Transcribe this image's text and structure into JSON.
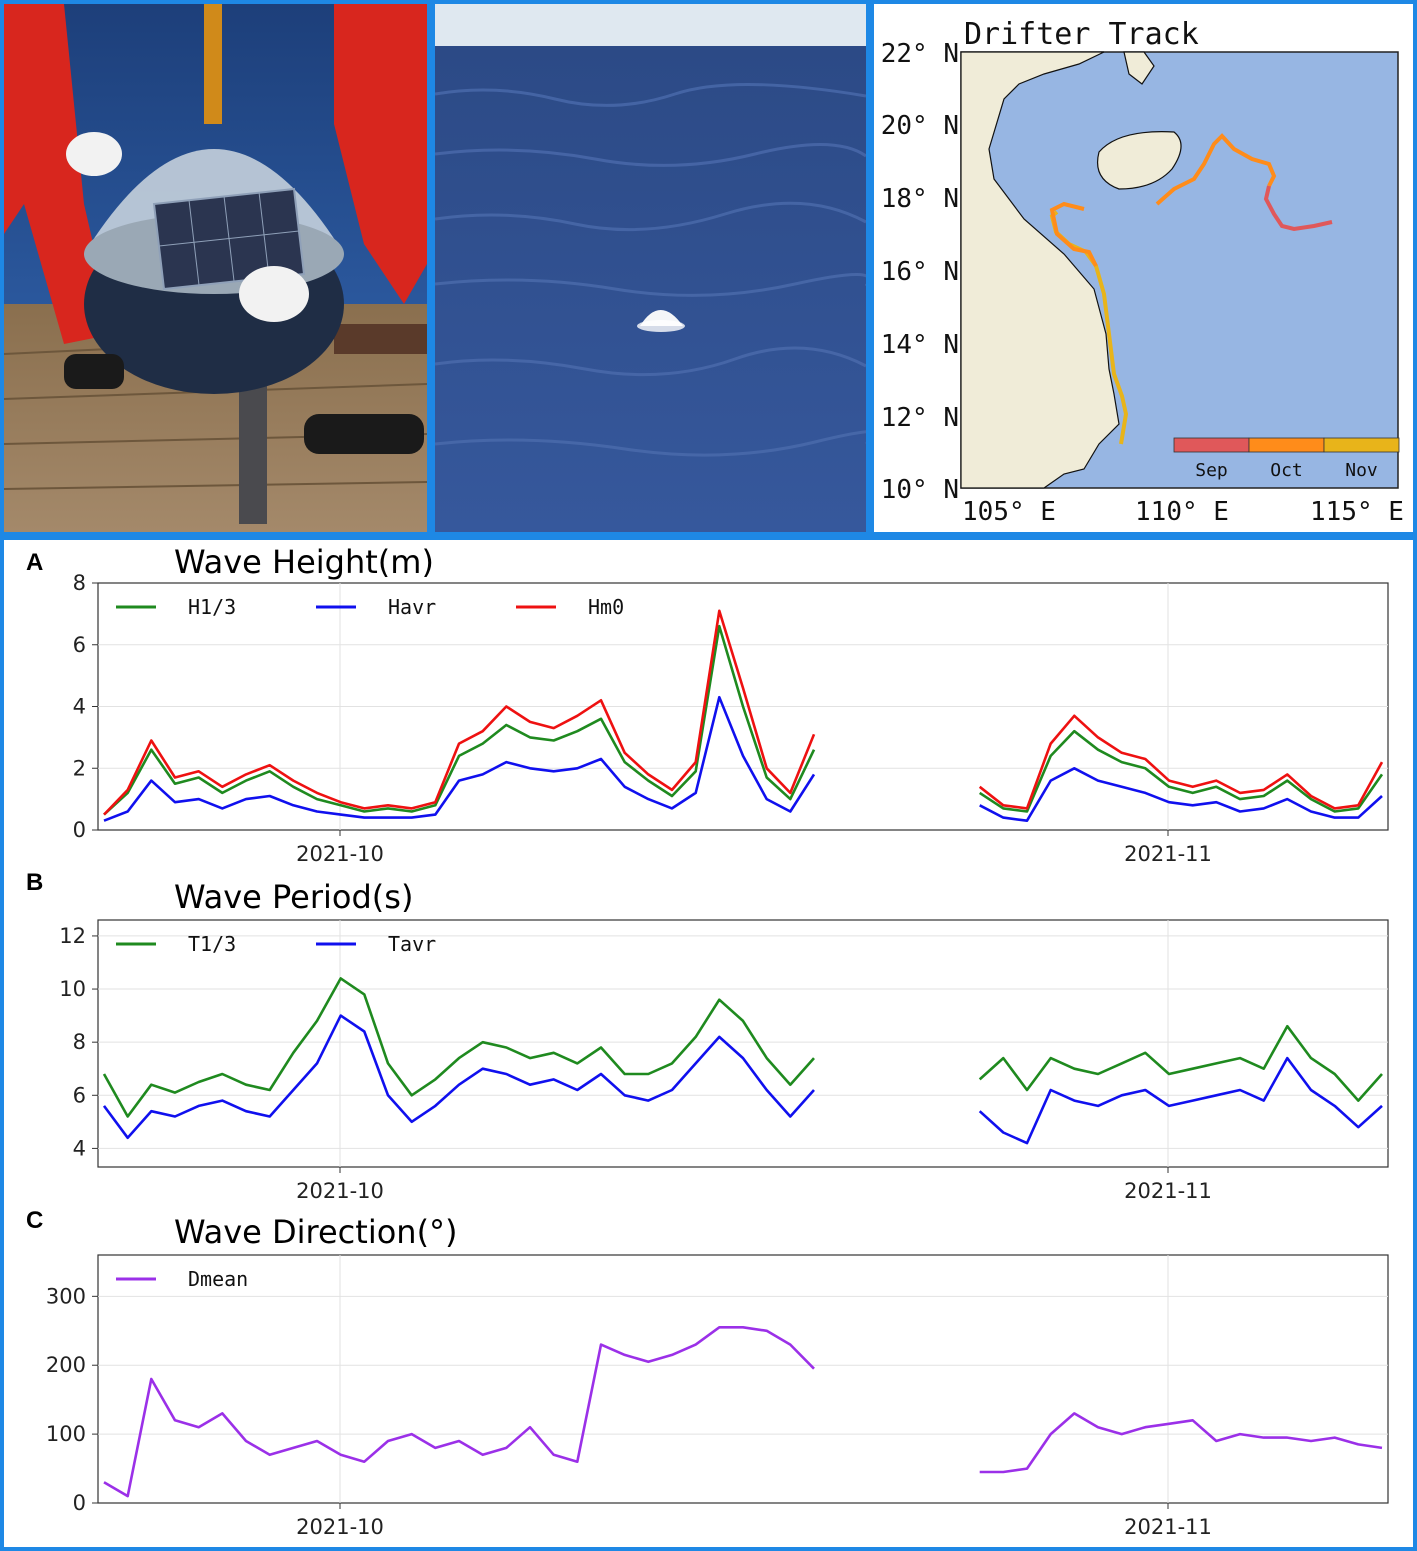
{
  "map": {
    "title": "Drifter Track",
    "lat_labels": [
      "22° N",
      "20° N",
      "18° N",
      "16° N",
      "14° N",
      "12° N",
      "10° N"
    ],
    "lon_labels": [
      "105° E",
      "110° E",
      "115° E"
    ],
    "colorbar": {
      "labels": [
        "Sep",
        "Oct",
        "Nov"
      ],
      "colors": [
        "#e0585a",
        "#ff8c1a",
        "#e8b41a"
      ]
    },
    "colors": {
      "land": "#f0ecd8",
      "sea": "#97b6e3"
    }
  },
  "chart_data": [
    {
      "panel": "A",
      "type": "line",
      "title": "Wave Height(m)",
      "ylim": [
        0,
        8
      ],
      "yticks": [
        0,
        2,
        4,
        6,
        8
      ],
      "xticklabels": [
        "2021-10",
        "2021-11"
      ],
      "grid": true,
      "legend": "top-left",
      "series": [
        {
          "name": "H1/3",
          "color": "#1f8a1f",
          "values": [
            0.5,
            1.2,
            2.6,
            1.5,
            1.7,
            1.2,
            1.6,
            1.9,
            1.4,
            1.0,
            0.8,
            0.6,
            0.7,
            0.6,
            0.8,
            2.4,
            2.8,
            3.4,
            3.0,
            2.9,
            3.2,
            3.6,
            2.2,
            1.6,
            1.1,
            1.9,
            6.6,
            4.0,
            1.7,
            1.0,
            2.6,
            null,
            null,
            null,
            null,
            null,
            null,
            1.2,
            0.7,
            0.6,
            2.4,
            3.2,
            2.6,
            2.2,
            2.0,
            1.4,
            1.2,
            1.4,
            1.0,
            1.1,
            1.6,
            1.0,
            0.6,
            0.7,
            1.8
          ]
        },
        {
          "name": "Havr",
          "color": "#1010ee",
          "values": [
            0.3,
            0.6,
            1.6,
            0.9,
            1.0,
            0.7,
            1.0,
            1.1,
            0.8,
            0.6,
            0.5,
            0.4,
            0.4,
            0.4,
            0.5,
            1.6,
            1.8,
            2.2,
            2.0,
            1.9,
            2.0,
            2.3,
            1.4,
            1.0,
            0.7,
            1.2,
            4.3,
            2.4,
            1.0,
            0.6,
            1.8,
            null,
            null,
            null,
            null,
            null,
            null,
            0.8,
            0.4,
            0.3,
            1.6,
            2.0,
            1.6,
            1.4,
            1.2,
            0.9,
            0.8,
            0.9,
            0.6,
            0.7,
            1.0,
            0.6,
            0.4,
            0.4,
            1.1
          ]
        },
        {
          "name": "Hm0",
          "color": "#ee1111",
          "values": [
            0.5,
            1.3,
            2.9,
            1.7,
            1.9,
            1.4,
            1.8,
            2.1,
            1.6,
            1.2,
            0.9,
            0.7,
            0.8,
            0.7,
            0.9,
            2.8,
            3.2,
            4.0,
            3.5,
            3.3,
            3.7,
            4.2,
            2.5,
            1.8,
            1.3,
            2.2,
            7.1,
            4.6,
            2.0,
            1.2,
            3.1,
            null,
            null,
            null,
            null,
            null,
            null,
            1.4,
            0.8,
            0.7,
            2.8,
            3.7,
            3.0,
            2.5,
            2.3,
            1.6,
            1.4,
            1.6,
            1.2,
            1.3,
            1.8,
            1.1,
            0.7,
            0.8,
            2.2
          ]
        }
      ]
    },
    {
      "panel": "B",
      "type": "line",
      "title": "Wave Period(s)",
      "ylim": [
        3.3,
        12.6
      ],
      "yticks": [
        4,
        6,
        8,
        10,
        12
      ],
      "xticklabels": [
        "2021-10",
        "2021-11"
      ],
      "grid": true,
      "legend": "top-left",
      "series": [
        {
          "name": "T1/3",
          "color": "#1f8a1f",
          "values": [
            6.8,
            5.2,
            6.4,
            6.1,
            6.5,
            6.8,
            6.4,
            6.2,
            7.6,
            8.8,
            10.4,
            9.8,
            7.2,
            6.0,
            6.6,
            7.4,
            8.0,
            7.8,
            7.4,
            7.6,
            7.2,
            7.8,
            6.8,
            6.8,
            7.2,
            8.2,
            9.6,
            8.8,
            7.4,
            6.4,
            7.4,
            null,
            null,
            null,
            null,
            null,
            null,
            6.6,
            7.4,
            6.2,
            7.4,
            7.0,
            6.8,
            7.2,
            7.6,
            6.8,
            7.0,
            7.2,
            7.4,
            7.0,
            8.6,
            7.4,
            6.8,
            5.8,
            6.8
          ]
        },
        {
          "name": "Tavr",
          "color": "#1010ee",
          "values": [
            5.6,
            4.4,
            5.4,
            5.2,
            5.6,
            5.8,
            5.4,
            5.2,
            6.2,
            7.2,
            9.0,
            8.4,
            6.0,
            5.0,
            5.6,
            6.4,
            7.0,
            6.8,
            6.4,
            6.6,
            6.2,
            6.8,
            6.0,
            5.8,
            6.2,
            7.2,
            8.2,
            7.4,
            6.2,
            5.2,
            6.2,
            null,
            null,
            null,
            null,
            null,
            null,
            5.4,
            4.6,
            4.2,
            6.2,
            5.8,
            5.6,
            6.0,
            6.2,
            5.6,
            5.8,
            6.0,
            6.2,
            5.8,
            7.4,
            6.2,
            5.6,
            4.8,
            5.6
          ]
        }
      ]
    },
    {
      "panel": "C",
      "type": "line",
      "title": "Wave Direction(°)",
      "ylim": [
        0,
        360
      ],
      "yticks": [
        0,
        100,
        200,
        300
      ],
      "xticklabels": [
        "2021-10",
        "2021-11"
      ],
      "grid": true,
      "legend": "top-left",
      "series": [
        {
          "name": "Dmean",
          "color": "#9b30e8",
          "values": [
            30,
            10,
            180,
            120,
            110,
            130,
            90,
            70,
            80,
            90,
            70,
            60,
            90,
            100,
            80,
            90,
            70,
            80,
            110,
            70,
            60,
            230,
            215,
            205,
            215,
            230,
            255,
            255,
            250,
            230,
            195,
            null,
            null,
            null,
            null,
            null,
            null,
            45,
            45,
            50,
            100,
            130,
            110,
            100,
            110,
            115,
            120,
            90,
            100,
            95,
            95,
            90,
            95,
            85,
            80
          ]
        }
      ]
    }
  ]
}
